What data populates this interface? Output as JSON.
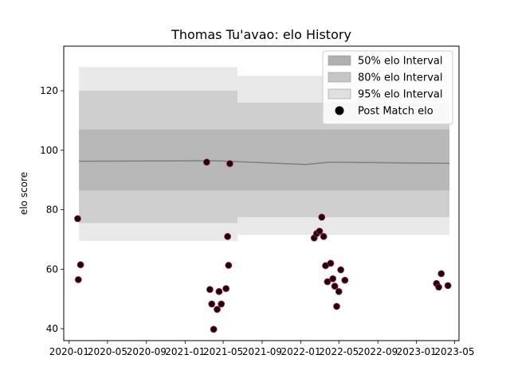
{
  "chart_data": {
    "type": "scatter",
    "title": "Thomas Tu'avao: elo History",
    "xlabel": "",
    "ylabel": "elo score",
    "xlim": [
      "2019-12-15",
      "2023-05-15"
    ],
    "ylim": [
      36,
      135
    ],
    "x_ticks": [
      "2020-01",
      "2020-05",
      "2020-09",
      "2021-01",
      "2021-05",
      "2021-09",
      "2022-01",
      "2022-05",
      "2022-09",
      "2023-01",
      "2023-05"
    ],
    "y_ticks": [
      40,
      60,
      80,
      100,
      120
    ],
    "legend_position": "top-right",
    "legend": [
      {
        "label": "50% elo Interval",
        "kind": "patch",
        "color": "#b0b0b0"
      },
      {
        "label": "80% elo Interval",
        "kind": "patch",
        "color": "#c6c6c6"
      },
      {
        "label": "95% elo Interval",
        "kind": "patch",
        "color": "#e0e0e0"
      },
      {
        "label": "Post Match elo",
        "kind": "marker",
        "color": "#000000"
      }
    ],
    "colors": {
      "band50": "#b0b0b0",
      "band80": "#c6c6c6",
      "band95": "#e2e2e2",
      "mean_line": "#808080",
      "marker_fill": "#1a0008",
      "marker_edge": "#b0204a"
    },
    "mean": [
      {
        "date": "2020-02-01",
        "value": 96.3
      },
      {
        "date": "2021-04-01",
        "value": 96.5
      },
      {
        "date": "2022-01-15",
        "value": 95.2
      },
      {
        "date": "2022-04-01",
        "value": 96.0
      },
      {
        "date": "2023-04-15",
        "value": 95.6
      }
    ],
    "intervals": [
      {
        "start": "2020-02-01",
        "end": "2021-06-15",
        "p50": [
          86.5,
          107.0
        ],
        "p80": [
          75.5,
          120.0
        ],
        "p95": [
          69.5,
          128.0
        ]
      },
      {
        "start": "2021-06-15",
        "end": "2023-04-15",
        "p50": [
          86.5,
          107.0
        ],
        "p80": [
          77.5,
          116.0
        ],
        "p95": [
          71.5,
          125.0
        ]
      }
    ],
    "points": [
      {
        "date": "2020-01-28",
        "value": 77.0
      },
      {
        "date": "2020-01-30",
        "value": 56.5
      },
      {
        "date": "2020-02-06",
        "value": 61.5
      },
      {
        "date": "2021-03-10",
        "value": 96.0
      },
      {
        "date": "2021-03-20",
        "value": 53.2
      },
      {
        "date": "2021-03-26",
        "value": 48.3
      },
      {
        "date": "2021-04-01",
        "value": 39.8
      },
      {
        "date": "2021-04-12",
        "value": 46.5
      },
      {
        "date": "2021-04-18",
        "value": 52.5
      },
      {
        "date": "2021-04-25",
        "value": 48.3
      },
      {
        "date": "2021-05-10",
        "value": 53.5
      },
      {
        "date": "2021-05-15",
        "value": 71.0
      },
      {
        "date": "2021-05-18",
        "value": 61.3
      },
      {
        "date": "2021-05-22",
        "value": 95.5
      },
      {
        "date": "2022-02-12",
        "value": 70.5
      },
      {
        "date": "2022-02-20",
        "value": 72.0
      },
      {
        "date": "2022-03-01",
        "value": 72.8
      },
      {
        "date": "2022-03-08",
        "value": 77.5
      },
      {
        "date": "2022-03-14",
        "value": 71.0
      },
      {
        "date": "2022-03-20",
        "value": 61.2
      },
      {
        "date": "2022-03-26",
        "value": 55.8
      },
      {
        "date": "2022-04-05",
        "value": 62.0
      },
      {
        "date": "2022-04-12",
        "value": 56.8
      },
      {
        "date": "2022-04-18",
        "value": 54.3
      },
      {
        "date": "2022-04-24",
        "value": 47.5
      },
      {
        "date": "2022-05-01",
        "value": 52.5
      },
      {
        "date": "2022-05-07",
        "value": 59.8
      },
      {
        "date": "2022-05-20",
        "value": 56.3
      },
      {
        "date": "2023-03-05",
        "value": 55.2
      },
      {
        "date": "2023-03-12",
        "value": 54.0
      },
      {
        "date": "2023-03-20",
        "value": 58.5
      },
      {
        "date": "2023-04-10",
        "value": 54.5
      }
    ]
  }
}
